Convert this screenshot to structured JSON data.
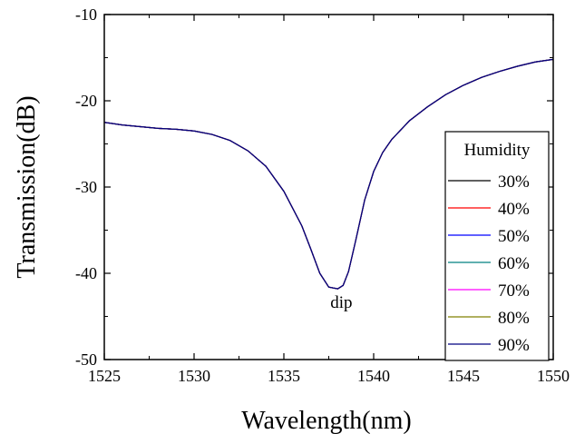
{
  "chart_data": {
    "type": "line",
    "title": "",
    "xlabel": "Wavelength(nm)",
    "ylabel": "Transmission(dB)",
    "xlim": [
      1525,
      1550
    ],
    "ylim": [
      -50,
      -10
    ],
    "x_ticks": [
      1525,
      1530,
      1535,
      1540,
      1545,
      1550
    ],
    "y_ticks": [
      -50,
      -40,
      -30,
      -20,
      -10
    ],
    "grid": false,
    "legend": {
      "title": "Humidity",
      "placement": "right"
    },
    "annotations": [
      {
        "text": "dip",
        "x": 1538.2,
        "y": -44
      }
    ],
    "x": [
      1525,
      1526,
      1527,
      1528,
      1529,
      1530,
      1531,
      1532,
      1533,
      1534,
      1535,
      1536,
      1536.5,
      1537,
      1537.5,
      1538,
      1538.3,
      1538.6,
      1539,
      1539.5,
      1540,
      1540.5,
      1541,
      1542,
      1543,
      1544,
      1545,
      1546,
      1547,
      1548,
      1549,
      1550
    ],
    "series": [
      {
        "name": "30%",
        "color": "#000000",
        "values": [
          -22.5,
          -22.8,
          -23.0,
          -23.2,
          -23.3,
          -23.5,
          -23.9,
          -24.6,
          -25.8,
          -27.6,
          -30.5,
          -34.5,
          -37.2,
          -40.0,
          -41.6,
          -41.8,
          -41.4,
          -39.8,
          -36.2,
          -31.5,
          -28.2,
          -26.0,
          -24.5,
          -22.3,
          -20.7,
          -19.3,
          -18.2,
          -17.3,
          -16.6,
          -16.0,
          -15.5,
          -15.2
        ]
      },
      {
        "name": "40%",
        "color": "#ff0000",
        "values": [
          -22.5,
          -22.8,
          -23.0,
          -23.2,
          -23.3,
          -23.5,
          -23.9,
          -24.6,
          -25.8,
          -27.6,
          -30.5,
          -34.5,
          -37.2,
          -40.0,
          -41.6,
          -41.8,
          -41.4,
          -39.8,
          -36.2,
          -31.5,
          -28.2,
          -26.0,
          -24.5,
          -22.3,
          -20.7,
          -19.3,
          -18.2,
          -17.3,
          -16.6,
          -16.0,
          -15.5,
          -15.2
        ]
      },
      {
        "name": "50%",
        "color": "#0000ff",
        "values": [
          -22.5,
          -22.8,
          -23.0,
          -23.2,
          -23.3,
          -23.5,
          -23.9,
          -24.6,
          -25.8,
          -27.6,
          -30.5,
          -34.5,
          -37.2,
          -40.0,
          -41.6,
          -41.8,
          -41.4,
          -39.8,
          -36.2,
          -31.5,
          -28.2,
          -26.0,
          -24.5,
          -22.3,
          -20.7,
          -19.3,
          -18.2,
          -17.3,
          -16.6,
          -16.0,
          -15.5,
          -15.2
        ]
      },
      {
        "name": "60%",
        "color": "#008080",
        "values": [
          -22.5,
          -22.8,
          -23.0,
          -23.2,
          -23.3,
          -23.5,
          -23.9,
          -24.6,
          -25.8,
          -27.6,
          -30.5,
          -34.5,
          -37.2,
          -40.0,
          -41.6,
          -41.8,
          -41.4,
          -39.8,
          -36.2,
          -31.5,
          -28.2,
          -26.0,
          -24.5,
          -22.3,
          -20.7,
          -19.3,
          -18.2,
          -17.3,
          -16.6,
          -16.0,
          -15.5,
          -15.2
        ]
      },
      {
        "name": "70%",
        "color": "#ff00ff",
        "values": [
          -22.5,
          -22.8,
          -23.0,
          -23.2,
          -23.3,
          -23.5,
          -23.9,
          -24.6,
          -25.8,
          -27.6,
          -30.5,
          -34.5,
          -37.2,
          -40.0,
          -41.6,
          -41.8,
          -41.4,
          -39.8,
          -36.2,
          -31.5,
          -28.2,
          -26.0,
          -24.5,
          -22.3,
          -20.7,
          -19.3,
          -18.2,
          -17.3,
          -16.6,
          -16.0,
          -15.5,
          -15.2
        ]
      },
      {
        "name": "80%",
        "color": "#808000",
        "values": [
          -22.5,
          -22.8,
          -23.0,
          -23.2,
          -23.3,
          -23.5,
          -23.9,
          -24.6,
          -25.8,
          -27.6,
          -30.5,
          -34.5,
          -37.2,
          -40.0,
          -41.6,
          -41.8,
          -41.4,
          -39.8,
          -36.2,
          -31.5,
          -28.2,
          -26.0,
          -24.5,
          -22.3,
          -20.7,
          -19.3,
          -18.2,
          -17.3,
          -16.6,
          -16.0,
          -15.5,
          -15.2
        ]
      },
      {
        "name": "90%",
        "color": "#000080",
        "values": [
          -22.5,
          -22.8,
          -23.0,
          -23.2,
          -23.3,
          -23.5,
          -23.9,
          -24.6,
          -25.8,
          -27.6,
          -30.5,
          -34.5,
          -37.2,
          -40.0,
          -41.6,
          -41.8,
          -41.4,
          -39.8,
          -36.2,
          -31.5,
          -28.2,
          -26.0,
          -24.5,
          -22.3,
          -20.7,
          -19.3,
          -18.2,
          -17.3,
          -16.6,
          -16.0,
          -15.5,
          -15.2
        ]
      }
    ]
  }
}
